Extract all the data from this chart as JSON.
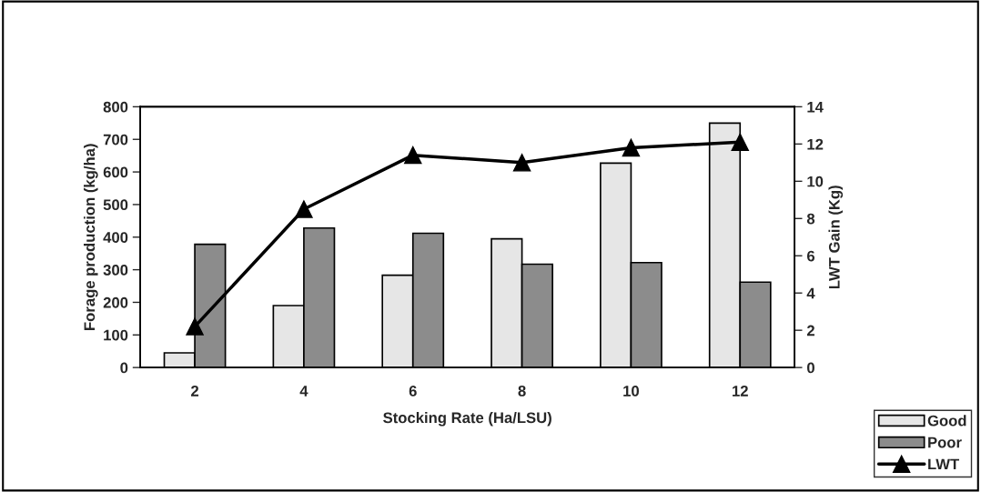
{
  "chart_data": {
    "type": "bar",
    "xlabel": "Stocking Rate (Ha/LSU)",
    "ylabel": "Forage production (kg/ha)",
    "y2label": "LWT Gain (Kg)",
    "categories": [
      "2",
      "4",
      "6",
      "8",
      "10",
      "12"
    ],
    "series": [
      {
        "name": "Good",
        "color": "#e6e6e6",
        "values": [
          45,
          190,
          283,
          395,
          627,
          750
        ]
      },
      {
        "name": "Poor",
        "color": "#8c8c8c",
        "values": [
          378,
          428,
          412,
          317,
          322,
          262
        ]
      },
      {
        "name": "LWT",
        "type": "line",
        "axis": "y2",
        "color": "#000000",
        "marker": "triangle",
        "values": [
          2.2,
          8.5,
          11.4,
          11.0,
          11.8,
          12.1
        ]
      }
    ],
    "ylim": [
      0,
      800
    ],
    "yticks": [
      0,
      100,
      200,
      300,
      400,
      500,
      600,
      700,
      800
    ],
    "y2lim": [
      0,
      14
    ],
    "y2ticks": [
      0,
      2,
      4,
      6,
      8,
      10,
      12,
      14
    ],
    "grid": false,
    "legend": "bottom right"
  }
}
